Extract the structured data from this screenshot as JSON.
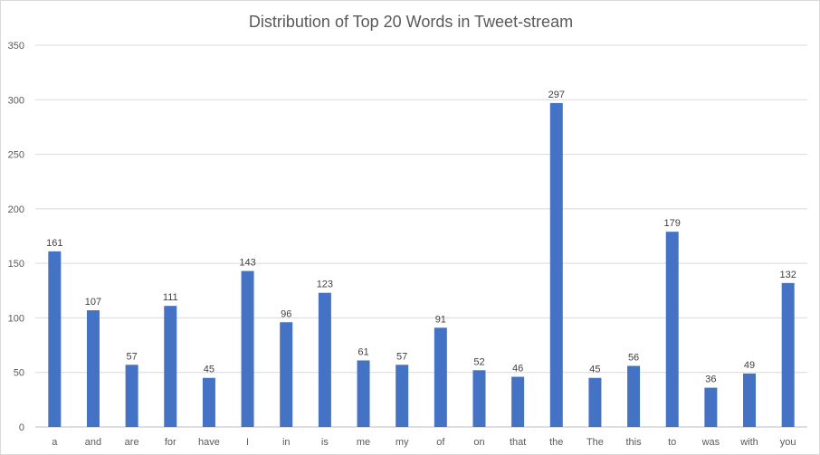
{
  "chart_data": {
    "type": "bar",
    "title": "Distribution of Top 20 Words in Tweet-stream",
    "categories": [
      "a",
      "and",
      "are",
      "for",
      "have",
      "I",
      "in",
      "is",
      "me",
      "my",
      "of",
      "on",
      "that",
      "the",
      "The",
      "this",
      "to",
      "was",
      "with",
      "you"
    ],
    "values": [
      161,
      107,
      57,
      111,
      45,
      143,
      96,
      123,
      61,
      57,
      91,
      52,
      46,
      297,
      45,
      56,
      179,
      36,
      49,
      132
    ],
    "ylim": [
      0,
      350
    ],
    "yticks": [
      0,
      50,
      100,
      150,
      200,
      250,
      300,
      350
    ],
    "grid": true,
    "legend": "none",
    "bar_color": "#4472c4"
  }
}
